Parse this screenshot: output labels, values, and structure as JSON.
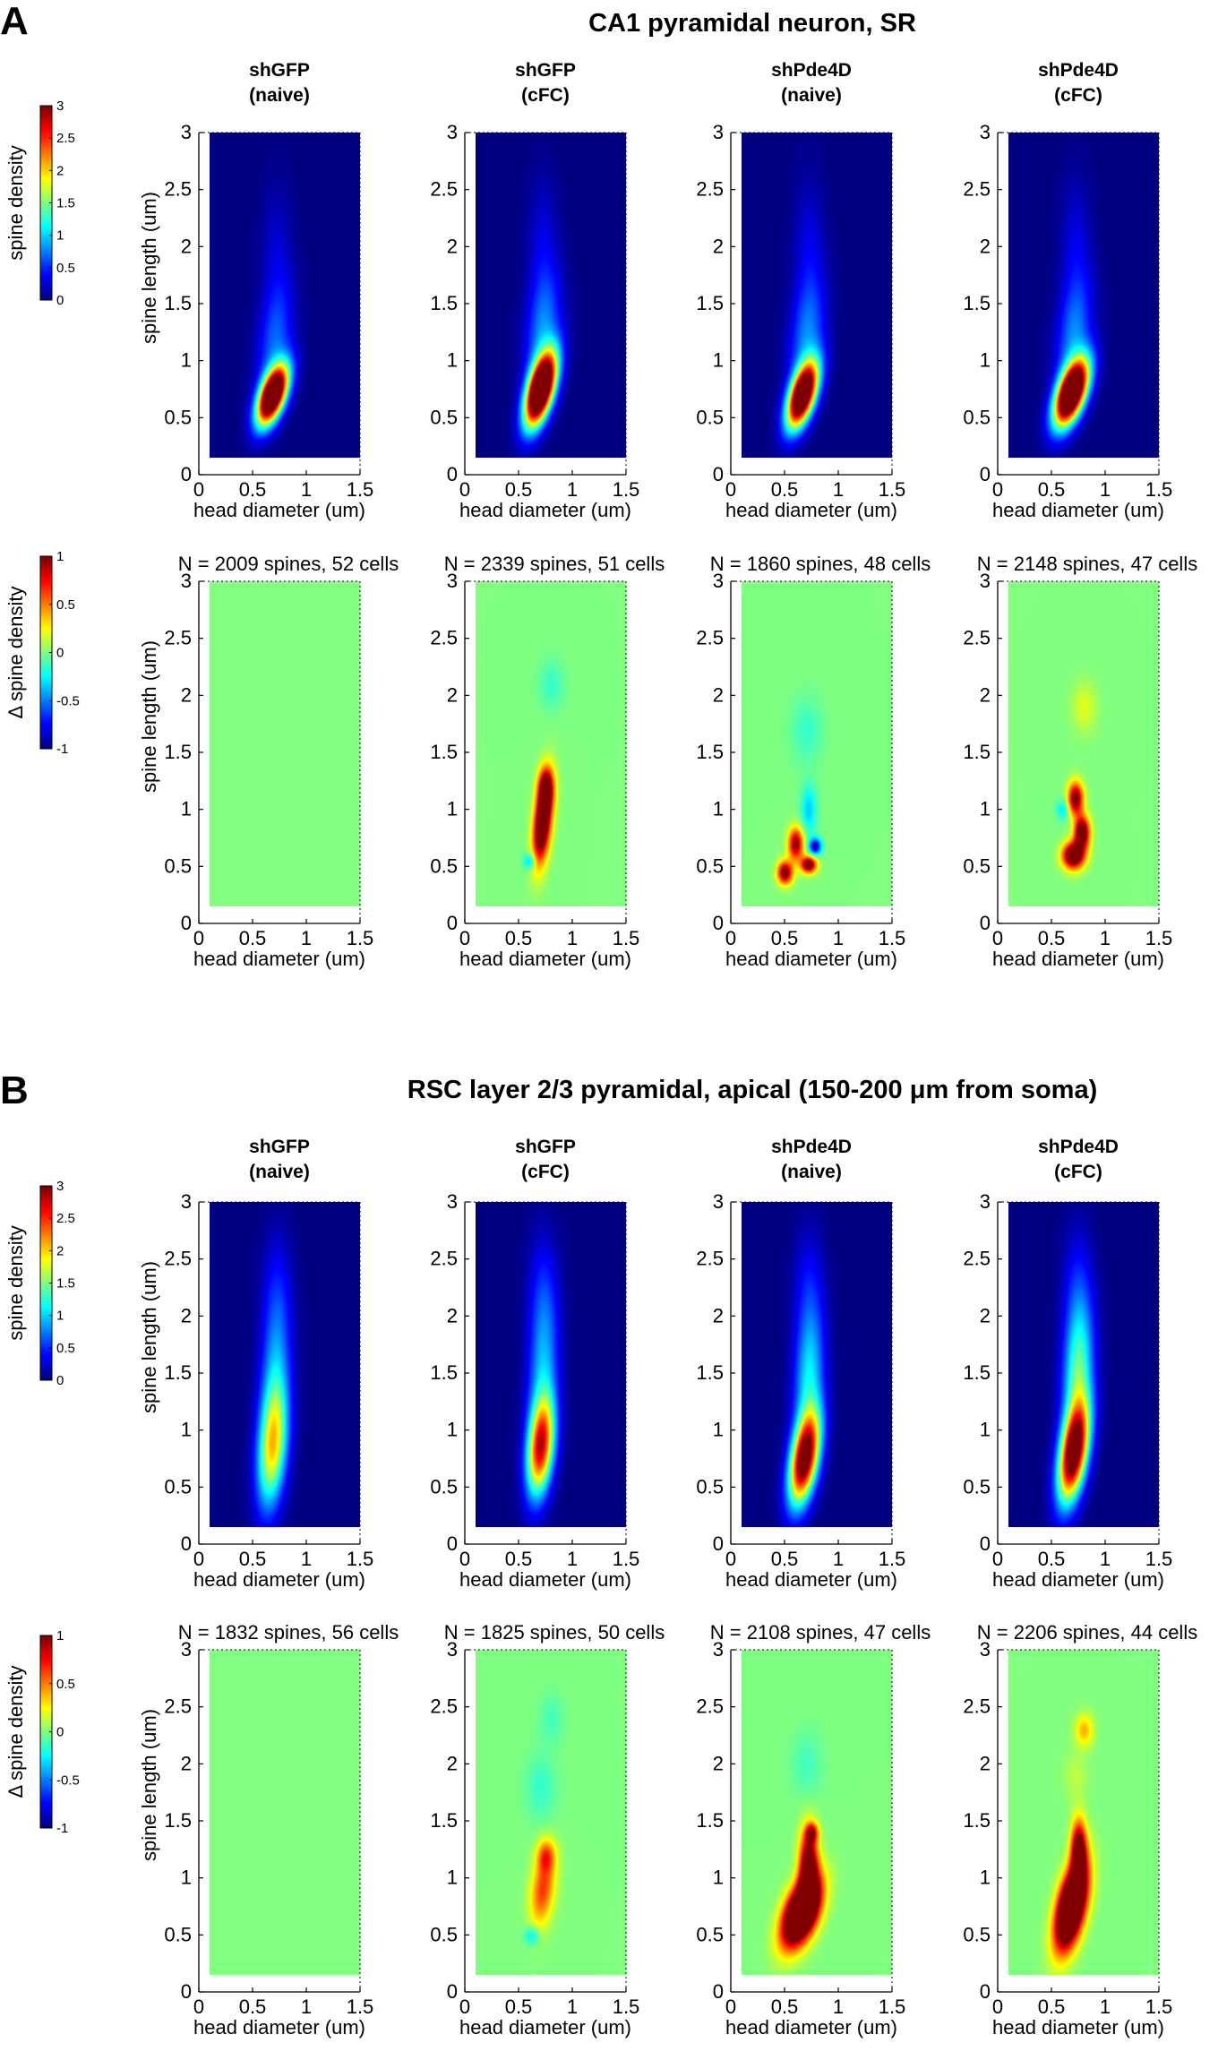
{
  "figure": {
    "panels": [
      {
        "letter": "A",
        "title": "CA1 pyramidal neuron, SR",
        "columns": [
          {
            "title_line1": "shGFP",
            "title_line2": "(naive)"
          },
          {
            "title_line1": "shGFP",
            "title_line2": "(cFC)"
          },
          {
            "title_line1": "shPde4D",
            "title_line2": "(naive)"
          },
          {
            "title_line1": "shPde4D",
            "title_line2": "(cFC)"
          }
        ],
        "counts": [
          "N = 2009 spines, 52 cells",
          "N = 2339 spines, 51 cells",
          "N = 1860 spines, 48 cells",
          "N = 2148 spines, 47 cells"
        ]
      },
      {
        "letter": "B",
        "title": "RSC layer 2/3 pyramidal, apical (150-200 μm from soma)",
        "columns": [
          {
            "title_line1": "shGFP",
            "title_line2": "(naive)"
          },
          {
            "title_line1": "shGFP",
            "title_line2": "(cFC)"
          },
          {
            "title_line1": "shPde4D",
            "title_line2": "(naive)"
          },
          {
            "title_line1": "shPde4D",
            "title_line2": "(cFC)"
          }
        ],
        "counts": [
          "N = 1832 spines, 56 cells",
          "N = 1825 spines, 50 cells",
          "N = 2108 spines, 47 cells",
          "N = 2206 spines, 44 cells"
        ]
      }
    ],
    "colorbars": {
      "density": {
        "label": "spine density",
        "ticks": [
          "0",
          "0.5",
          "1",
          "1.5",
          "2",
          "2.5",
          "3"
        ]
      },
      "delta": {
        "label": "Δ spine density",
        "ticks": [
          "-1",
          "-0.5",
          "0",
          "0.5",
          "1"
        ]
      }
    },
    "axes": {
      "xlabel": "head diameter (um)",
      "ylabel": "spine length (um)",
      "xticks": [
        "0",
        "0.5",
        "1",
        "1.5"
      ],
      "yticks": [
        "0",
        "0.5",
        "1",
        "1.5",
        "2",
        "2.5",
        "3"
      ]
    }
  },
  "chart_data": [
    {
      "type": "heatmap",
      "panel": "A",
      "row": "spine density",
      "titles": [
        "shGFP (naive)",
        "shGFP (cFC)",
        "shPde4D (naive)",
        "shPde4D (cFC)"
      ],
      "xlabel": "head diameter (um)",
      "ylabel": "spine length (um)",
      "xlim": [
        0,
        1.5
      ],
      "ylim": [
        0,
        3
      ],
      "clim": [
        0,
        3
      ],
      "colormap": "jet",
      "blobs": [
        [
          {
            "x": 0.68,
            "y": 0.7,
            "sx": 0.1,
            "sy": 0.18,
            "amp": 4.2,
            "rho": 0.55
          },
          {
            "x": 0.7,
            "y": 1.15,
            "sx": 0.12,
            "sy": 0.35,
            "amp": 0.6,
            "rho": 0.3
          },
          {
            "x": 0.72,
            "y": 1.9,
            "sx": 0.1,
            "sy": 0.45,
            "amp": 0.25,
            "rho": 0
          }
        ],
        [
          {
            "x": 0.7,
            "y": 0.75,
            "sx": 0.1,
            "sy": 0.22,
            "amp": 4.6,
            "rho": 0.55
          },
          {
            "x": 0.72,
            "y": 1.25,
            "sx": 0.12,
            "sy": 0.35,
            "amp": 0.7,
            "rho": 0.3
          },
          {
            "x": 0.72,
            "y": 1.95,
            "sx": 0.1,
            "sy": 0.45,
            "amp": 0.3,
            "rho": 0
          }
        ],
        [
          {
            "x": 0.66,
            "y": 0.7,
            "sx": 0.1,
            "sy": 0.2,
            "amp": 4.0,
            "rho": 0.55
          },
          {
            "x": 0.7,
            "y": 1.2,
            "sx": 0.12,
            "sy": 0.35,
            "amp": 0.7,
            "rho": 0.3
          },
          {
            "x": 0.72,
            "y": 1.95,
            "sx": 0.1,
            "sy": 0.45,
            "amp": 0.3,
            "rho": 0
          }
        ],
        [
          {
            "x": 0.68,
            "y": 0.72,
            "sx": 0.11,
            "sy": 0.2,
            "amp": 4.4,
            "rho": 0.55
          },
          {
            "x": 0.7,
            "y": 1.2,
            "sx": 0.12,
            "sy": 0.35,
            "amp": 0.7,
            "rho": 0.3
          },
          {
            "x": 0.72,
            "y": 1.95,
            "sx": 0.1,
            "sy": 0.45,
            "amp": 0.3,
            "rho": 0
          }
        ]
      ]
    },
    {
      "type": "heatmap",
      "panel": "A",
      "row": "delta spine density",
      "counts": [
        "N = 2009 spines, 52 cells",
        "N = 2339 spines, 51 cells",
        "N = 1860 spines, 48 cells",
        "N = 2148 spines, 47 cells"
      ],
      "xlabel": "head diameter (um)",
      "ylabel": "spine length (um)",
      "xlim": [
        0,
        1.5
      ],
      "ylim": [
        0,
        3
      ],
      "clim": [
        -1,
        1
      ],
      "colormap": "jet",
      "blobs": [
        [],
        [
          {
            "x": 0.72,
            "y": 0.9,
            "sx": 0.06,
            "sy": 0.25,
            "amp": 1.5,
            "rho": 0.4
          },
          {
            "x": 0.75,
            "y": 1.2,
            "sx": 0.05,
            "sy": 0.12,
            "amp": 0.8,
            "rho": 0
          },
          {
            "x": 0.6,
            "y": 0.55,
            "sx": 0.04,
            "sy": 0.05,
            "amp": -0.4,
            "rho": 0
          },
          {
            "x": 0.8,
            "y": 2.1,
            "sx": 0.08,
            "sy": 0.15,
            "amp": -0.15,
            "rho": 0
          }
        ],
        [
          {
            "x": 0.5,
            "y": 0.45,
            "sx": 0.05,
            "sy": 0.07,
            "amp": 1.1,
            "rho": 0
          },
          {
            "x": 0.6,
            "y": 0.7,
            "sx": 0.05,
            "sy": 0.1,
            "amp": 1.0,
            "rho": 0
          },
          {
            "x": 0.72,
            "y": 0.52,
            "sx": 0.05,
            "sy": 0.05,
            "amp": 1.2,
            "rho": 0
          },
          {
            "x": 0.78,
            "y": 0.68,
            "sx": 0.04,
            "sy": 0.05,
            "amp": -0.9,
            "rho": 0
          },
          {
            "x": 0.72,
            "y": 1.0,
            "sx": 0.05,
            "sy": 0.15,
            "amp": -0.35,
            "rho": 0
          },
          {
            "x": 0.7,
            "y": 1.7,
            "sx": 0.1,
            "sy": 0.2,
            "amp": -0.15,
            "rho": 0
          }
        ],
        [
          {
            "x": 0.7,
            "y": 0.6,
            "sx": 0.07,
            "sy": 0.08,
            "amp": 1.4,
            "rho": 0
          },
          {
            "x": 0.78,
            "y": 0.8,
            "sx": 0.05,
            "sy": 0.1,
            "amp": 1.3,
            "rho": 0
          },
          {
            "x": 0.72,
            "y": 1.1,
            "sx": 0.05,
            "sy": 0.1,
            "amp": 1.1,
            "rho": 0
          },
          {
            "x": 0.6,
            "y": 1.0,
            "sx": 0.04,
            "sy": 0.06,
            "amp": -0.3,
            "rho": 0
          },
          {
            "x": 0.8,
            "y": 1.9,
            "sx": 0.08,
            "sy": 0.15,
            "amp": 0.2,
            "rho": 0
          }
        ]
      ]
    },
    {
      "type": "heatmap",
      "panel": "B",
      "row": "spine density",
      "titles": [
        "shGFP (naive)",
        "shGFP (cFC)",
        "shPde4D (naive)",
        "shPde4D (cFC)"
      ],
      "xlabel": "head diameter (um)",
      "ylabel": "spine length (um)",
      "xlim": [
        0,
        1.5
      ],
      "ylim": [
        0,
        3
      ],
      "clim": [
        0,
        3
      ],
      "colormap": "jet",
      "blobs": [
        [
          {
            "x": 0.68,
            "y": 0.85,
            "sx": 0.1,
            "sy": 0.38,
            "amp": 1.85,
            "rho": 0.3
          },
          {
            "x": 0.7,
            "y": 1.5,
            "sx": 0.1,
            "sy": 0.45,
            "amp": 0.7,
            "rho": 0.2
          },
          {
            "x": 0.72,
            "y": 2.2,
            "sx": 0.1,
            "sy": 0.4,
            "amp": 0.35,
            "rho": 0
          }
        ],
        [
          {
            "x": 0.7,
            "y": 0.85,
            "sx": 0.09,
            "sy": 0.3,
            "amp": 2.6,
            "rho": 0.3
          },
          {
            "x": 0.72,
            "y": 1.5,
            "sx": 0.1,
            "sy": 0.45,
            "amp": 0.8,
            "rho": 0.2
          },
          {
            "x": 0.72,
            "y": 2.2,
            "sx": 0.1,
            "sy": 0.4,
            "amp": 0.4,
            "rho": 0
          }
        ],
        [
          {
            "x": 0.68,
            "y": 0.75,
            "sx": 0.1,
            "sy": 0.28,
            "amp": 3.3,
            "rho": 0.45
          },
          {
            "x": 0.72,
            "y": 1.45,
            "sx": 0.1,
            "sy": 0.4,
            "amp": 1.0,
            "rho": 0.2
          },
          {
            "x": 0.72,
            "y": 2.2,
            "sx": 0.1,
            "sy": 0.4,
            "amp": 0.4,
            "rho": 0
          }
        ],
        [
          {
            "x": 0.7,
            "y": 0.8,
            "sx": 0.1,
            "sy": 0.3,
            "amp": 3.4,
            "rho": 0.45
          },
          {
            "x": 0.74,
            "y": 1.5,
            "sx": 0.1,
            "sy": 0.4,
            "amp": 1.3,
            "rho": 0.2
          },
          {
            "x": 0.74,
            "y": 2.2,
            "sx": 0.1,
            "sy": 0.4,
            "amp": 0.45,
            "rho": 0
          }
        ]
      ]
    },
    {
      "type": "heatmap",
      "panel": "B",
      "row": "delta spine density",
      "counts": [
        "N = 1832 spines, 56 cells",
        "N = 1825 spines, 50 cells",
        "N = 2108 spines, 47 cells",
        "N = 2206 spines, 44 cells"
      ],
      "xlabel": "head diameter (um)",
      "ylabel": "spine length (um)",
      "xlim": [
        0,
        1.5
      ],
      "ylim": [
        0,
        3
      ],
      "clim": [
        -1,
        1
      ],
      "colormap": "jet",
      "blobs": [
        [],
        [
          {
            "x": 0.72,
            "y": 0.9,
            "sx": 0.08,
            "sy": 0.22,
            "amp": 0.65,
            "rho": 0.3
          },
          {
            "x": 0.75,
            "y": 1.2,
            "sx": 0.06,
            "sy": 0.1,
            "amp": 0.5,
            "rho": 0
          },
          {
            "x": 0.62,
            "y": 0.5,
            "sx": 0.05,
            "sy": 0.06,
            "amp": -0.3,
            "rho": 0
          },
          {
            "x": 0.7,
            "y": 1.8,
            "sx": 0.1,
            "sy": 0.2,
            "amp": -0.15,
            "rho": 0
          },
          {
            "x": 0.8,
            "y": 2.4,
            "sx": 0.08,
            "sy": 0.15,
            "amp": -0.12,
            "rho": 0
          }
        ],
        [
          {
            "x": 0.65,
            "y": 0.7,
            "sx": 0.12,
            "sy": 0.2,
            "amp": 2.2,
            "rho": 0.5
          },
          {
            "x": 0.72,
            "y": 1.1,
            "sx": 0.06,
            "sy": 0.22,
            "amp": 1.3,
            "rho": 0
          },
          {
            "x": 0.75,
            "y": 1.4,
            "sx": 0.04,
            "sy": 0.06,
            "amp": 0.7,
            "rho": 0
          },
          {
            "x": 0.7,
            "y": 2.0,
            "sx": 0.1,
            "sy": 0.2,
            "amp": -0.12,
            "rho": 0
          }
        ],
        [
          {
            "x": 0.68,
            "y": 0.75,
            "sx": 0.1,
            "sy": 0.25,
            "amp": 2.2,
            "rho": 0.5
          },
          {
            "x": 0.75,
            "y": 1.25,
            "sx": 0.05,
            "sy": 0.18,
            "amp": 1.2,
            "rho": 0
          },
          {
            "x": 0.8,
            "y": 2.3,
            "sx": 0.06,
            "sy": 0.1,
            "amp": 0.4,
            "rho": 0
          },
          {
            "x": 0.72,
            "y": 1.9,
            "sx": 0.08,
            "sy": 0.15,
            "amp": 0.12,
            "rho": 0
          }
        ]
      ]
    }
  ]
}
